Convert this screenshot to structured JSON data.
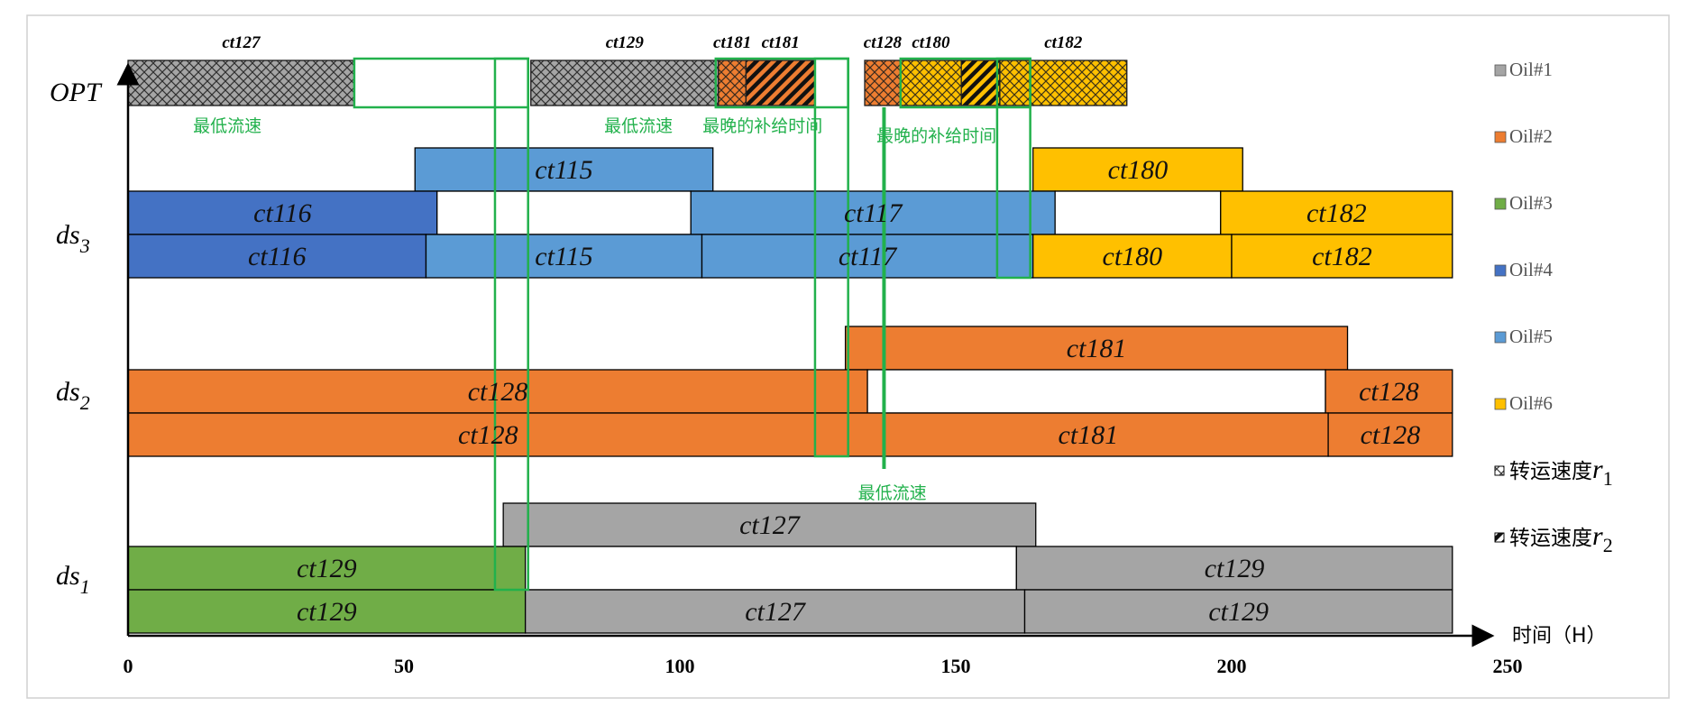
{
  "colors": {
    "oil1": "#A5A5A5",
    "oil2": "#ED7D31",
    "oil3": "#70AD47",
    "oil4": "#4472C4",
    "oil5": "#5B9BD5",
    "oil6": "#FFC000",
    "highlight": "#22B14C",
    "white": "#FFFFFF"
  },
  "chart_data": {
    "type": "gantt",
    "title": "",
    "xlabel": "时间（H）",
    "xlim": [
      0,
      250
    ],
    "xticks": [
      0,
      50,
      100,
      150,
      200,
      250
    ],
    "row_labels": {
      "opt": "OPT",
      "ds3": {
        "base": "ds",
        "sub": "3"
      },
      "ds2": {
        "base": "ds",
        "sub": "2"
      },
      "ds1": {
        "base": "ds",
        "sub": "1"
      }
    },
    "legend": {
      "placement": "right",
      "items": [
        {
          "label": "Oil#1",
          "color_key": "oil1",
          "kind": "swatch"
        },
        {
          "label": "Oil#2",
          "color_key": "oil2",
          "kind": "swatch"
        },
        {
          "label": "Oil#3",
          "color_key": "oil3",
          "kind": "swatch"
        },
        {
          "label": "Oil#4",
          "color_key": "oil4",
          "kind": "swatch"
        },
        {
          "label": "Oil#5",
          "color_key": "oil5",
          "kind": "swatch"
        },
        {
          "label": "Oil#6",
          "color_key": "oil6",
          "kind": "swatch"
        },
        {
          "label": "转运速度",
          "sym": "r",
          "sub": "1",
          "kind": "crosshatch"
        },
        {
          "label": "转运速度",
          "sym": "r",
          "sub": "2",
          "kind": "stripes"
        }
      ]
    },
    "opt_bars": [
      {
        "start": 0,
        "end": 41,
        "oil": "oil1",
        "pattern": "crosshatch",
        "label": "ct127"
      },
      {
        "start": 73,
        "end": 107,
        "oil": "oil1",
        "pattern": "crosshatch",
        "label": "ct129"
      },
      {
        "start": 107,
        "end": 112,
        "oil": "oil2",
        "pattern": "crosshatch",
        "label": "ct181"
      },
      {
        "start": 112,
        "end": 124.5,
        "oil": "oil2",
        "pattern": "stripes",
        "label": "ct181"
      },
      {
        "start": 133.5,
        "end": 140,
        "oil": "oil2",
        "pattern": "crosshatch",
        "label": "ct128"
      },
      {
        "start": 140,
        "end": 151,
        "oil": "oil6",
        "pattern": "crosshatch",
        "label": "ct180"
      },
      {
        "start": 151,
        "end": 158,
        "oil": "oil6",
        "pattern": "stripes",
        "label": ""
      },
      {
        "start": 158,
        "end": 181,
        "oil": "oil6",
        "pattern": "crosshatch",
        "label": "ct182"
      }
    ],
    "tanks": [
      {
        "group": "ds3",
        "lane": 0,
        "bars": [
          {
            "start": 52,
            "end": 106,
            "oil": "oil5",
            "label": "ct115"
          },
          {
            "start": 164,
            "end": 202,
            "oil": "oil6",
            "label": "ct180"
          }
        ]
      },
      {
        "group": "ds3",
        "lane": 1,
        "bars": [
          {
            "start": 0,
            "end": 56,
            "oil": "oil4",
            "label": "ct116"
          },
          {
            "start": 56,
            "end": 102,
            "oil": "none",
            "label": ""
          },
          {
            "start": 102,
            "end": 168,
            "oil": "oil5",
            "label": "ct117"
          },
          {
            "start": 168,
            "end": 198,
            "oil": "none",
            "label": ""
          },
          {
            "start": 198,
            "end": 240,
            "oil": "oil6",
            "label": "ct182"
          }
        ]
      },
      {
        "group": "ds3",
        "lane": 2,
        "bars": [
          {
            "start": 0,
            "end": 54,
            "oil": "oil4",
            "label": "ct116"
          },
          {
            "start": 54,
            "end": 104,
            "oil": "oil5",
            "label": "ct115"
          },
          {
            "start": 104,
            "end": 164,
            "oil": "oil5",
            "label": "ct117"
          },
          {
            "start": 164,
            "end": 200,
            "oil": "oil6",
            "label": "ct180"
          },
          {
            "start": 200,
            "end": 240,
            "oil": "oil6",
            "label": "ct182"
          }
        ]
      },
      {
        "group": "ds2",
        "lane": 0,
        "bars": [
          {
            "start": 130,
            "end": 221,
            "oil": "oil2",
            "label": "ct181"
          }
        ]
      },
      {
        "group": "ds2",
        "lane": 1,
        "bars": [
          {
            "start": 0,
            "end": 134,
            "oil": "oil2",
            "label": "ct128"
          },
          {
            "start": 134,
            "end": 217,
            "oil": "none",
            "label": ""
          },
          {
            "start": 217,
            "end": 240,
            "oil": "oil2",
            "label": "ct128"
          }
        ]
      },
      {
        "group": "ds2",
        "lane": 2,
        "bars": [
          {
            "start": 0,
            "end": 130.5,
            "oil": "oil2",
            "label": "ct128"
          },
          {
            "start": 130.5,
            "end": 217.5,
            "oil": "oil2",
            "label": "ct181"
          },
          {
            "start": 217.5,
            "end": 240,
            "oil": "oil2",
            "label": "ct128"
          }
        ]
      },
      {
        "group": "ds1",
        "lane": 0,
        "bars": [
          {
            "start": 68,
            "end": 164.5,
            "oil": "oil1",
            "label": "ct127"
          }
        ]
      },
      {
        "group": "ds1",
        "lane": 1,
        "bars": [
          {
            "start": 0,
            "end": 72,
            "oil": "oil3",
            "label": "ct129"
          },
          {
            "start": 72,
            "end": 161,
            "oil": "none",
            "label": ""
          },
          {
            "start": 161,
            "end": 240,
            "oil": "oil1",
            "label": "ct129"
          }
        ]
      },
      {
        "group": "ds1",
        "lane": 2,
        "bars": [
          {
            "start": 0,
            "end": 72,
            "oil": "oil3",
            "label": "ct129"
          },
          {
            "start": 72,
            "end": 162.5,
            "oil": "oil1",
            "label": "ct127"
          },
          {
            "start": 162.5,
            "end": 240,
            "oil": "oil1",
            "label": "ct129"
          }
        ]
      }
    ],
    "annotation_boxes": [
      {
        "start": 41,
        "end": 72.5,
        "from": "opt_top",
        "to": "opt_bottom"
      },
      {
        "start": 66.5,
        "end": 72.5,
        "from": "opt_top",
        "to": "ds1_lane1_bottom"
      },
      {
        "start": 106.5,
        "end": 130.5,
        "from": "opt_top",
        "to": "opt_bottom"
      },
      {
        "start": 124.5,
        "end": 130.5,
        "from": "opt_top",
        "to": "ds2_lane2_bottom"
      },
      {
        "start": 140,
        "end": 163.5,
        "from": "opt_top",
        "to": "opt_bottom"
      },
      {
        "start": 157.5,
        "end": 163.5,
        "from": "opt_top",
        "to": "ds3_lane2_bottom"
      }
    ],
    "annotation_line": {
      "x": 137,
      "from": "opt_bottom",
      "to": "ds2_lane2_bottom"
    },
    "annotations": [
      {
        "text": "最低流速",
        "near_x": 18,
        "anchor": "below_opt"
      },
      {
        "text": "最低流速",
        "near_x": 92.5,
        "anchor": "below_opt"
      },
      {
        "text": "最晚的补给时间",
        "near_x": 115,
        "anchor": "below_opt"
      },
      {
        "text": "最晚的补给时间",
        "near_x": 146.5,
        "anchor": "below_opt_low"
      },
      {
        "text": "最低流速",
        "near_x": 138.5,
        "anchor": "below_ds2"
      }
    ]
  }
}
